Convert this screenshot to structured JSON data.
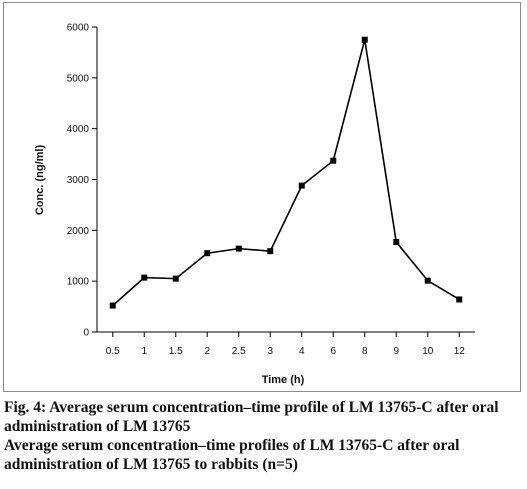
{
  "chart_data": {
    "type": "line",
    "title": "",
    "xlabel": "Time (h)",
    "ylabel": "Conc. (ng/ml)",
    "categories": [
      "0.5",
      "1",
      "1.5",
      "2",
      "2.5",
      "3",
      "4",
      "6",
      "8",
      "9",
      "10",
      "12"
    ],
    "values": [
      520,
      1070,
      1050,
      1550,
      1640,
      1590,
      2880,
      3370,
      5750,
      1770,
      1010,
      640
    ],
    "ylim": [
      0,
      6000
    ],
    "yticks": [
      0,
      1000,
      2000,
      3000,
      4000,
      5000,
      6000
    ],
    "grid": false,
    "legend": "none",
    "line_color": "#000000",
    "marker": "square"
  },
  "caption": {
    "fig_label": "Fig. 4:",
    "line1": "Average serum concentration–time profile of LM 13765-C after oral administration of LM 13765",
    "line2": "Average serum concentration–time profiles of LM 13765-C after oral administration of LM 13765 to rabbits (n=5)"
  }
}
